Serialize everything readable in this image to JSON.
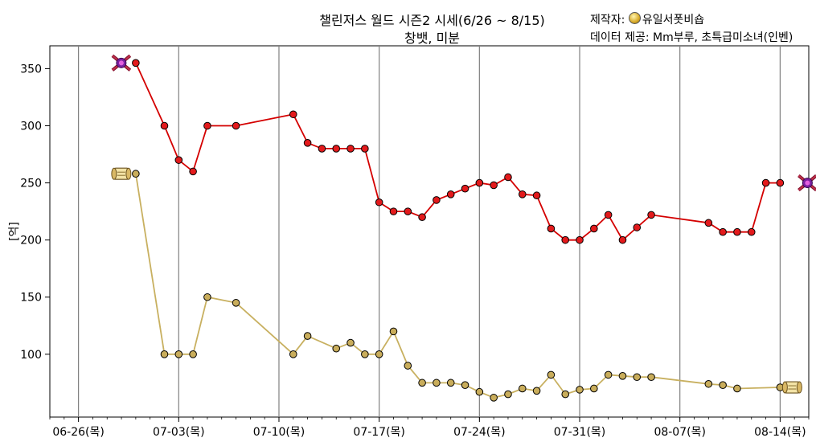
{
  "header": {
    "title_line1": "챌린저스 월드 시즌2 시세(6/26 ~ 8/15)",
    "title_line2": "창뱃, 미분",
    "maker_label": "제작자:",
    "maker_name": "유일서폿비숍",
    "credit": "데이터 제공: Mm부루, 초특급미소녀(인벤)"
  },
  "colors": {
    "series_a_line": "#d40000",
    "series_a_marker": "#e31a1c",
    "series_b_line": "#c8b060",
    "series_b_marker": "#c9ad5b",
    "vgrid": "#808080"
  },
  "icons": [
    "badge-icon",
    "scroll-icon",
    "coin-icon"
  ],
  "chart_data": {
    "type": "line",
    "title": "챌린저스 월드 시즌2 시세(6/26 ~ 8/15)",
    "subtitle": "창뱃, 미분",
    "xlabel": "",
    "ylabel": "[억]",
    "xlim": [
      "06-24",
      "08-16"
    ],
    "ylim": [
      45,
      370
    ],
    "yticks": [
      100,
      150,
      200,
      250,
      300,
      350
    ],
    "xticks": [
      "06-26",
      "07-03",
      "07-10",
      "07-17",
      "07-24",
      "07-31",
      "08-07",
      "08-14"
    ],
    "xtick_labels": [
      "06-26(목)",
      "07-03(목)",
      "07-10(목)",
      "07-17(목)",
      "07-24(목)",
      "07-31(목)",
      "08-07(목)",
      "08-14(목)"
    ],
    "grid": "vertical lines at weekly ticks",
    "legend": "none",
    "series": [
      {
        "x": [
          "06-30",
          "07-02",
          "07-03",
          "07-04",
          "07-05",
          "07-07",
          "07-11",
          "07-12",
          "07-13",
          "07-14",
          "07-15",
          "07-16",
          "07-17",
          "07-18",
          "07-19",
          "07-20",
          "07-21",
          "07-22",
          "07-23",
          "07-24",
          "07-25",
          "07-26",
          "07-27",
          "07-28",
          "07-29",
          "07-30",
          "07-31",
          "08-01",
          "08-02",
          "08-03",
          "08-04",
          "08-05",
          "08-09",
          "08-10",
          "08-11",
          "08-12",
          "08-13",
          "08-14"
        ],
        "values": [
          355,
          300,
          270,
          260,
          300,
          300,
          310,
          285,
          280,
          280,
          280,
          280,
          233,
          225,
          225,
          220,
          235,
          240,
          245,
          250,
          248,
          255,
          240,
          239,
          210,
          200,
          200,
          210,
          222,
          200,
          211,
          222,
          215,
          207,
          207,
          207,
          250,
          250
        ]
      },
      {
        "x": [
          "06-30",
          "07-02",
          "07-03",
          "07-04",
          "07-05",
          "07-07",
          "07-11",
          "07-12",
          "07-14",
          "07-15",
          "07-16",
          "07-17",
          "07-18",
          "07-19",
          "07-20",
          "07-21",
          "07-22",
          "07-23",
          "07-24",
          "07-25",
          "07-26",
          "07-27",
          "07-28",
          "07-29",
          "07-30",
          "07-31",
          "08-01",
          "08-02",
          "08-03",
          "08-04",
          "08-05",
          "08-09",
          "08-10",
          "08-11",
          "08-14"
        ],
        "values": [
          258,
          100,
          100,
          100,
          150,
          145,
          100,
          116,
          105,
          110,
          100,
          100,
          120,
          90,
          75,
          75,
          75,
          73,
          67,
          62,
          65,
          70,
          68,
          82,
          65,
          69,
          70,
          82,
          81,
          80,
          80,
          74,
          73,
          70,
          71
        ]
      }
    ],
    "annotations": [
      "badge-icon",
      "scroll-icon"
    ]
  }
}
